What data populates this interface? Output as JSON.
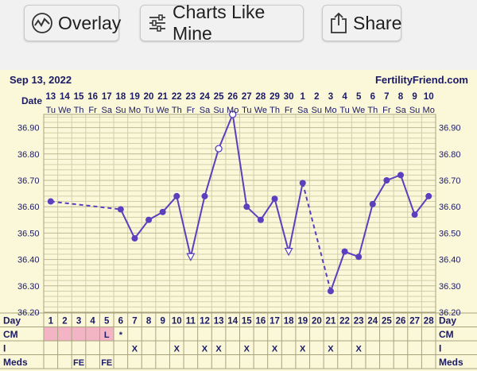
{
  "toolbar": {
    "overlay_label": "Overlay",
    "charts_like_mine_label": "Charts Like Mine",
    "share_label": "Share"
  },
  "header": {
    "date": "Sep 13, 2022",
    "site": "FertilityFriend.com"
  },
  "colors": {
    "chart_bg": "#fbf7d9",
    "grid": "#d3ceaa",
    "line": "#5a3fbf",
    "cm_highlight": "#f3b5c5"
  },
  "chart_data": {
    "type": "line",
    "title": "",
    "xlabel": "",
    "ylabel": "",
    "ylim": [
      36.2,
      36.95
    ],
    "yticks": [
      "36.90",
      "36.80",
      "36.70",
      "36.60",
      "36.50",
      "36.40",
      "36.30",
      "36.20"
    ],
    "date_row_label": "Date",
    "dates": [
      "13",
      "14",
      "15",
      "16",
      "17",
      "18",
      "19",
      "20",
      "21",
      "22",
      "23",
      "24",
      "25",
      "26",
      "27",
      "28",
      "29",
      "30",
      "1",
      "2",
      "3",
      "4",
      "5",
      "6",
      "7",
      "8",
      "9",
      "10"
    ],
    "weekdays": [
      "Tu",
      "We",
      "Th",
      "Fr",
      "Sa",
      "Su",
      "Mo",
      "Tu",
      "We",
      "Th",
      "Fr",
      "Sa",
      "Su",
      "Mo",
      "Tu",
      "We",
      "Th",
      "Fr",
      "Sa",
      "Su",
      "Mo",
      "Tu",
      "We",
      "Th",
      "Fr",
      "Sa",
      "Su",
      "Mo"
    ],
    "temps": [
      36.62,
      null,
      null,
      null,
      null,
      36.59,
      36.48,
      36.55,
      36.58,
      36.64,
      36.41,
      36.64,
      36.82,
      36.95,
      36.6,
      36.55,
      36.63,
      36.43,
      36.69,
      null,
      36.28,
      36.43,
      36.41,
      36.61,
      36.7,
      36.72,
      36.57,
      36.64
    ],
    "markers": [
      "dot",
      "none",
      "none",
      "none",
      "none",
      "dot",
      "dot",
      "dot",
      "dot",
      "dot",
      "tri",
      "dot",
      "open",
      "open",
      "dot",
      "dot",
      "dot",
      "tri",
      "dot",
      "none",
      "dot",
      "dot",
      "dot",
      "dot",
      "dot",
      "dot",
      "dot",
      "dot"
    ],
    "dashed_segments": [
      [
        0,
        5
      ],
      [
        18,
        20
      ]
    ],
    "rows": {
      "day_label": "Day",
      "days": [
        "1",
        "2",
        "3",
        "4",
        "5",
        "6",
        "7",
        "8",
        "9",
        "10",
        "11",
        "12",
        "13",
        "14",
        "15",
        "16",
        "17",
        "18",
        "19",
        "20",
        "21",
        "22",
        "23",
        "24",
        "25",
        "26",
        "27",
        "28"
      ],
      "cm_label": "CM",
      "cm": [
        "",
        "",
        "",
        "",
        "L",
        "*",
        "",
        "",
        "",
        "",
        "",
        "",
        "",
        "",
        "",
        "",
        "",
        "",
        "",
        "",
        "",
        "",
        "",
        "",
        "",
        "",
        "",
        ""
      ],
      "cm_highlight_cells": [
        0,
        1,
        2,
        3,
        4
      ],
      "i_label": "I",
      "i": [
        "",
        "",
        "",
        "",
        "",
        "",
        "X",
        "",
        "",
        "X",
        "",
        "X",
        "X",
        "",
        "X",
        "",
        "X",
        "",
        "X",
        "",
        "X",
        "",
        "X",
        "",
        "",
        "",
        "",
        ""
      ],
      "meds_label": "Meds",
      "meds": [
        "",
        "",
        "FE",
        "",
        "FE",
        "",
        "",
        "",
        "",
        "",
        "",
        "",
        "",
        "",
        "",
        "",
        "",
        "",
        "",
        "",
        "",
        "",
        "",
        "",
        "",
        "",
        "",
        ""
      ]
    }
  }
}
